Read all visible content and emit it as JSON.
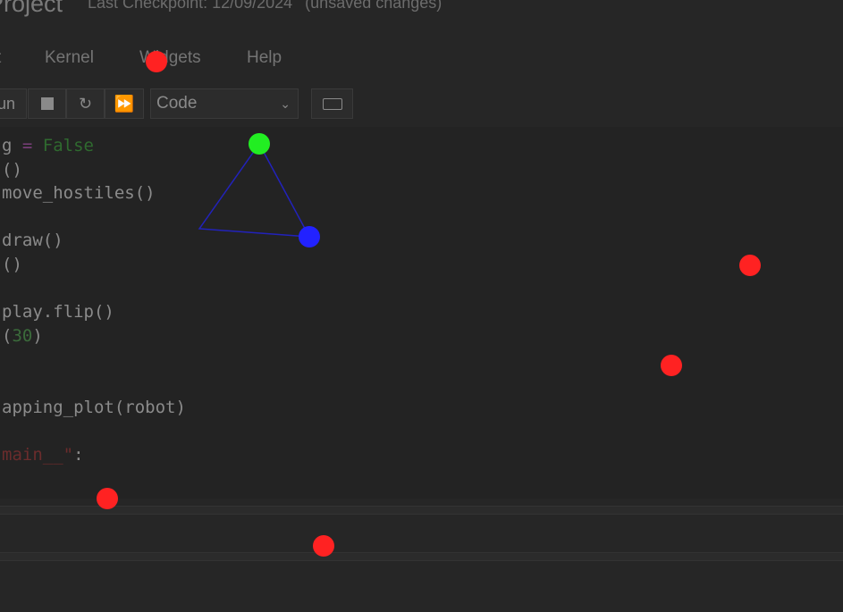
{
  "header": {
    "notebook_name": "Project",
    "checkpoint": "Last Checkpoint: 12/09/2024",
    "unsaved": "(unsaved changes)"
  },
  "menu": [
    "t",
    "Kernel",
    "Widgets",
    "Help"
  ],
  "toolbar": {
    "run_label": "un",
    "cell_type": "Code"
  },
  "code_lines": [
    {
      "text": "g = False",
      "parts": [
        [
          "g ",
          ""
        ],
        [
          "=",
          "op"
        ],
        [
          " False",
          "kw"
        ]
      ]
    },
    {
      "text": "()"
    },
    {
      "text": "move_hostiles()"
    },
    {
      "text": ""
    },
    {
      "text": "draw()"
    },
    {
      "text": "()"
    },
    {
      "text": ""
    },
    {
      "text": "play.flip()"
    },
    {
      "text": "(30)",
      "parts": [
        [
          "(",
          ""
        ],
        [
          "30",
          "num"
        ],
        [
          ")",
          ""
        ]
      ]
    },
    {
      "text": ""
    },
    {
      "text": ""
    },
    {
      "text": "apping_plot(robot)"
    },
    {
      "text": ""
    },
    {
      "text": "main__\":",
      "parts": [
        [
          "main__\"",
          "str"
        ],
        [
          ":",
          ""
        ]
      ]
    }
  ],
  "game": {
    "robot_color": "#2222ff",
    "target_color": "#22ee22",
    "hostile_color": "#ff2222",
    "outline_color": "#2222bb"
  }
}
